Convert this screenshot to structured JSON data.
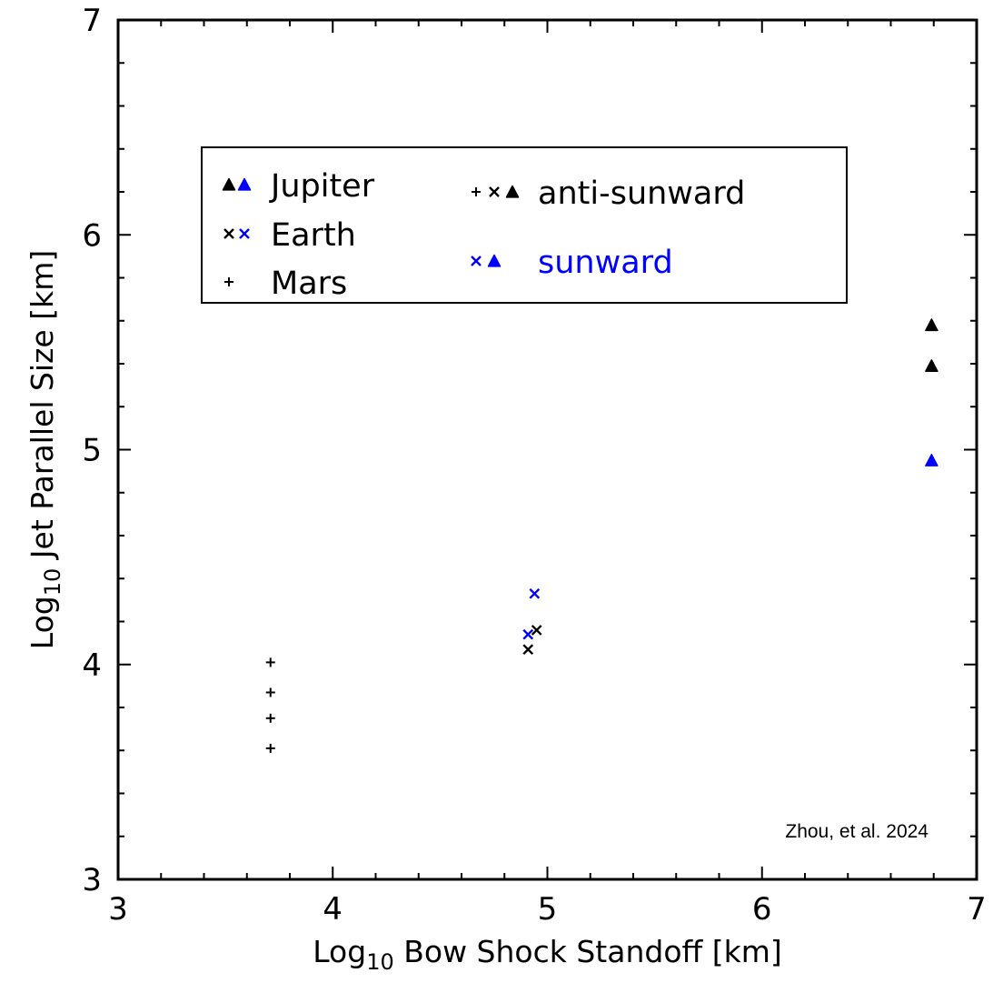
{
  "chart_data": {
    "type": "scatter",
    "xlabel": "Log10 Bow Shock Standoff [km]",
    "xlabel_parts": {
      "prefix": "Log",
      "subscript": "10",
      "rest": " Bow Shock Standoff [km]"
    },
    "ylabel": "Log10 Jet Parallel Size [km]",
    "ylabel_parts": {
      "prefix": "Log",
      "subscript": "10",
      "rest": " Jet Parallel Size [km]"
    },
    "xlim": [
      3,
      7
    ],
    "ylim": [
      3,
      7
    ],
    "xticks": [
      "3",
      "4",
      "5",
      "6",
      "7"
    ],
    "yticks": [
      "3",
      "4",
      "5",
      "6",
      "7"
    ],
    "grid": false,
    "legend_position": "upper-left",
    "annotation": "Zhou, et al. 2024",
    "colors": {
      "anti_sunward": "#000000",
      "sunward": "#0000ff"
    },
    "series": [
      {
        "name": "Mars",
        "marker": "plus",
        "direction": "anti-sunward",
        "points": [
          [
            3.71,
            4.01
          ],
          [
            3.71,
            3.87
          ],
          [
            3.71,
            3.75
          ],
          [
            3.71,
            3.61
          ]
        ]
      },
      {
        "name": "Earth",
        "marker": "x",
        "direction": "anti-sunward",
        "points": [
          [
            4.91,
            4.07
          ],
          [
            4.95,
            4.16
          ]
        ]
      },
      {
        "name": "Earth",
        "marker": "x",
        "direction": "sunward",
        "points": [
          [
            4.91,
            4.14
          ],
          [
            4.94,
            4.33
          ]
        ]
      },
      {
        "name": "Jupiter",
        "marker": "triangle",
        "direction": "anti-sunward",
        "points": [
          [
            6.79,
            5.58
          ],
          [
            6.79,
            5.39
          ]
        ]
      },
      {
        "name": "Jupiter",
        "marker": "triangle",
        "direction": "sunward",
        "points": [
          [
            6.79,
            4.95
          ]
        ]
      }
    ],
    "legend": {
      "planets": [
        {
          "label": "Jupiter",
          "marker": "triangle",
          "colors": [
            "anti_sunward",
            "sunward"
          ]
        },
        {
          "label": "Earth",
          "marker": "x",
          "colors": [
            "anti_sunward",
            "sunward"
          ]
        },
        {
          "label": "Mars",
          "marker": "plus",
          "colors": [
            "anti_sunward"
          ]
        }
      ],
      "directions": [
        {
          "label": "anti-sunward",
          "markers": [
            "plus",
            "x",
            "triangle"
          ],
          "color": "anti_sunward"
        },
        {
          "label": "sunward",
          "markers": [
            "x",
            "triangle"
          ],
          "color": "sunward"
        }
      ]
    }
  }
}
